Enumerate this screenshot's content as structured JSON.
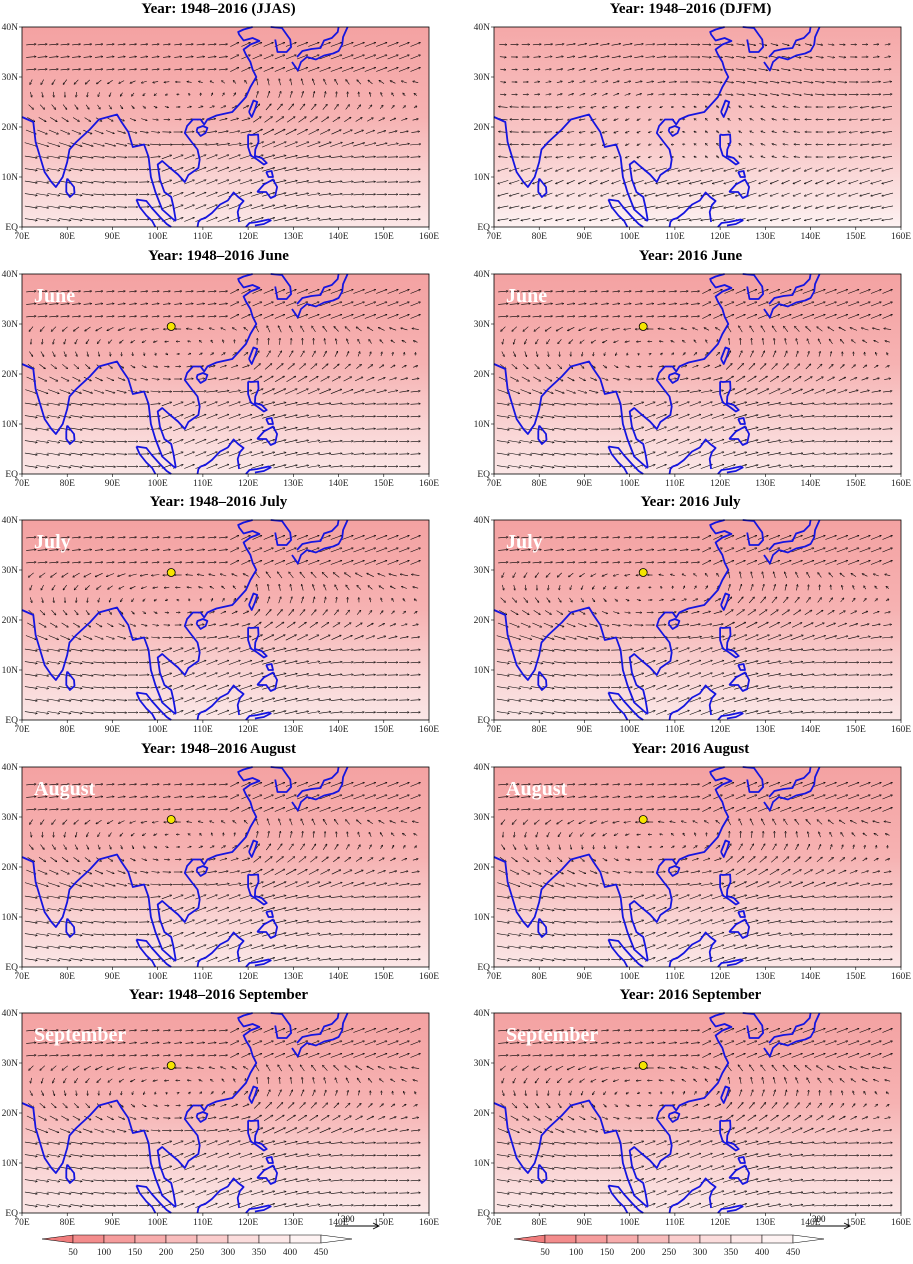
{
  "panels": [
    {
      "id": "p1",
      "title": "Year: 1948–2016 (JJAS)",
      "month_label": "",
      "show_marker": false,
      "col": 0,
      "row": 0,
      "regime": "summer"
    },
    {
      "id": "p2",
      "title": "Year: 1948–2016 (DJFM)",
      "month_label": "",
      "show_marker": false,
      "col": 1,
      "row": 0,
      "regime": "winter"
    },
    {
      "id": "p3",
      "title": "Year: 1948–2016 June",
      "month_label": "June",
      "show_marker": true,
      "col": 0,
      "row": 1,
      "regime": "summer"
    },
    {
      "id": "p4",
      "title": "Year: 2016 June",
      "month_label": "June",
      "show_marker": true,
      "col": 1,
      "row": 1,
      "regime": "summer"
    },
    {
      "id": "p5",
      "title": "Year: 1948–2016 July",
      "month_label": "July",
      "show_marker": true,
      "col": 0,
      "row": 2,
      "regime": "summer"
    },
    {
      "id": "p6",
      "title": "Year: 2016 July",
      "month_label": "July",
      "show_marker": true,
      "col": 1,
      "row": 2,
      "regime": "summer"
    },
    {
      "id": "p7",
      "title": "Year: 1948–2016 August",
      "month_label": "August",
      "show_marker": true,
      "col": 0,
      "row": 3,
      "regime": "summer"
    },
    {
      "id": "p8",
      "title": "Year: 2016 August",
      "month_label": "August",
      "show_marker": true,
      "col": 1,
      "row": 3,
      "regime": "summer"
    },
    {
      "id": "p9",
      "title": "Year: 1948–2016 September",
      "month_label": "September",
      "show_marker": true,
      "col": 0,
      "row": 4,
      "regime": "summer"
    },
    {
      "id": "p10",
      "title": "Year: 2016 September",
      "month_label": "September",
      "show_marker": true,
      "col": 1,
      "row": 4,
      "regime": "summer"
    }
  ],
  "axes": {
    "x_ticks": [
      "70E",
      "80E",
      "90E",
      "100E",
      "110E",
      "120E",
      "130E",
      "140E",
      "150E",
      "160E"
    ],
    "y_ticks": [
      "EQ",
      "10N",
      "20N",
      "30N",
      "40N"
    ],
    "lon_range": [
      70,
      160
    ],
    "lat_range": [
      0,
      40
    ]
  },
  "marker": {
    "lon": 103,
    "lat": 29.5,
    "color": "#f5e400"
  },
  "colorbar": {
    "labels": [
      "50",
      "100",
      "150",
      "200",
      "250",
      "300",
      "350",
      "400",
      "450"
    ],
    "low_color": "#f08080",
    "high_color": "#ffffff"
  },
  "reference_vector": {
    "label": "300"
  },
  "colors": {
    "coastline": "#1515e0",
    "field": "#f4a3a3",
    "arrow": "#000000",
    "marker_fill": "#f5e400"
  }
}
